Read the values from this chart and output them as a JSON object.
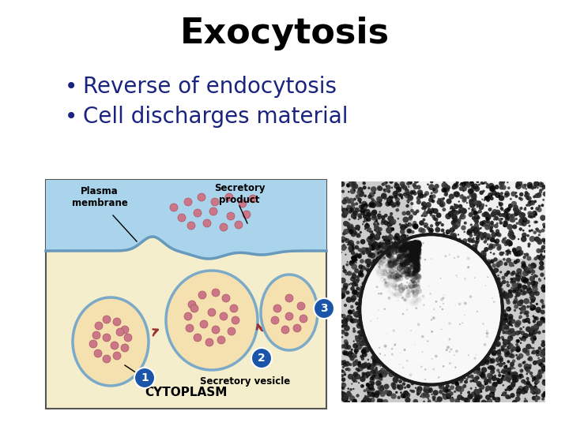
{
  "title": "Exocytosis",
  "title_fontsize": 32,
  "title_color": "#000000",
  "title_fontweight": "bold",
  "bullet_color": "#1a237e",
  "bullet_fontsize": 20,
  "bullets": [
    "Reverse of endocytosis",
    "Cell discharges material"
  ],
  "background_color": "#ffffff",
  "diagram_box_color": "#f5eecc",
  "diagram_border_color": "#555555",
  "plasma_membrane_color": "#aad4ec",
  "vesicle_outline_color": "#7aaac8",
  "vesicle_fill_color": "#f5e0b0",
  "dot_color": "#cc7788",
  "dot_edge_color": "#aa5566",
  "label_color": "#000000",
  "step_circle_color": "#1a55aa",
  "step_text_color": "#ffffff",
  "cytoplasm_label": "CYTOPLASM",
  "plasma_label": "Plasma\nmembrane",
  "secretory_product_label": "Secretory\nproduct",
  "vesicle_label": "Secretory vesicle",
  "arrow_color": "#993333"
}
